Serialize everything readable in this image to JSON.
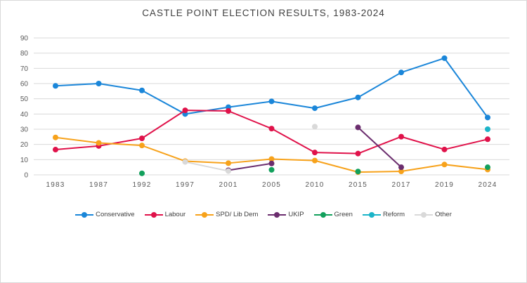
{
  "chart_data": {
    "type": "line",
    "title": "CASTLE POINT ELECTION RESULTS, 1983-2024",
    "xlabel": "",
    "ylabel": "",
    "categories": [
      "1983",
      "1987",
      "1992",
      "1997",
      "2001",
      "2005",
      "2010",
      "2015",
      "2017",
      "2019",
      "2024"
    ],
    "ylim": [
      0,
      90
    ],
    "yticks": [
      "0",
      "10",
      "20",
      "30",
      "40",
      "50",
      "60",
      "70",
      "80",
      "90"
    ],
    "grid": true,
    "legend": "bottom",
    "series": [
      {
        "name": "Conservative",
        "color": "#1a86d9",
        "values": [
          58.5,
          60,
          55.5,
          40,
          44.5,
          48.3,
          43.8,
          50.9,
          67.3,
          76.7,
          37.7
        ]
      },
      {
        "name": "Labour",
        "color": "#e0124a",
        "values": [
          16.6,
          19,
          24,
          42.4,
          42,
          30.4,
          14.7,
          14,
          25.1,
          16.7,
          23.4
        ]
      },
      {
        "name": "SPD/ Lib Dem",
        "color": "#f7a21b",
        "values": [
          24.6,
          21,
          19.3,
          9,
          7.7,
          10.4,
          9.4,
          1.8,
          2.3,
          6.8,
          3.5
        ]
      },
      {
        "name": "UKIP",
        "color": "#6b2d6e",
        "values": [
          null,
          null,
          null,
          null,
          3,
          7.5,
          null,
          31.2,
          5,
          null,
          null
        ]
      },
      {
        "name": "Green",
        "color": "#12a05c",
        "values": [
          null,
          null,
          1,
          null,
          null,
          3.3,
          null,
          2.2,
          null,
          null,
          5
        ]
      },
      {
        "name": "Reform",
        "color": "#1bb4c8",
        "values": [
          null,
          null,
          null,
          null,
          null,
          null,
          null,
          null,
          null,
          null,
          30
        ]
      },
      {
        "name": "Other",
        "color": "#d9d9d9",
        "values": [
          null,
          null,
          null,
          8.5,
          2.5,
          null,
          31.7,
          null,
          null,
          null,
          null
        ]
      }
    ]
  }
}
